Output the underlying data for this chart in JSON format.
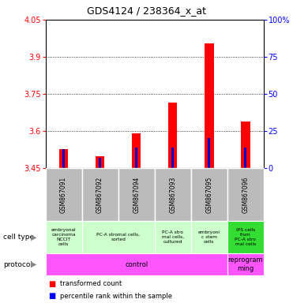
{
  "title": "GDS4124 / 238364_x_at",
  "samples": [
    "GSM867091",
    "GSM867092",
    "GSM867094",
    "GSM867093",
    "GSM867095",
    "GSM867096"
  ],
  "transformed_counts": [
    3.527,
    3.497,
    3.592,
    3.715,
    3.955,
    3.638
  ],
  "percentile_ranks": [
    13.0,
    7.0,
    14.0,
    14.0,
    20.0,
    14.0
  ],
  "ylim_left": [
    3.45,
    4.05
  ],
  "ylim_right": [
    0,
    100
  ],
  "yticks_left": [
    3.45,
    3.6,
    3.75,
    3.9,
    4.05
  ],
  "yticks_right": [
    0,
    25,
    50,
    75,
    100
  ],
  "ytick_labels_right": [
    "0",
    "25",
    "50",
    "75",
    "100%"
  ],
  "bar_color": "#ff0000",
  "percentile_color": "#0000cc",
  "bar_width": 0.25,
  "blue_bar_width": 0.07,
  "grid_color": "#000000",
  "sample_area_bg": "#bbbbbb",
  "cell_groups": [
    [
      0,
      1,
      "embryonal\ncarcinoma\nNCCIT\ncells",
      "#ccffcc"
    ],
    [
      1,
      3,
      "PC-A stromal cells,\nsorted",
      "#ccffcc"
    ],
    [
      3,
      4,
      "PC-A stro\nmal cells,\ncultured",
      "#ccffcc"
    ],
    [
      4,
      5,
      "embryoni\nc stem\ncells",
      "#ccffcc"
    ],
    [
      5,
      6,
      "IPS cells\nfrom\nPC-A stro\nmal cells",
      "#33dd33"
    ]
  ],
  "prot_groups": [
    [
      0,
      5,
      "control",
      "#ff55ff"
    ],
    [
      5,
      6,
      "reprogram\nming",
      "#ff55ff"
    ]
  ]
}
